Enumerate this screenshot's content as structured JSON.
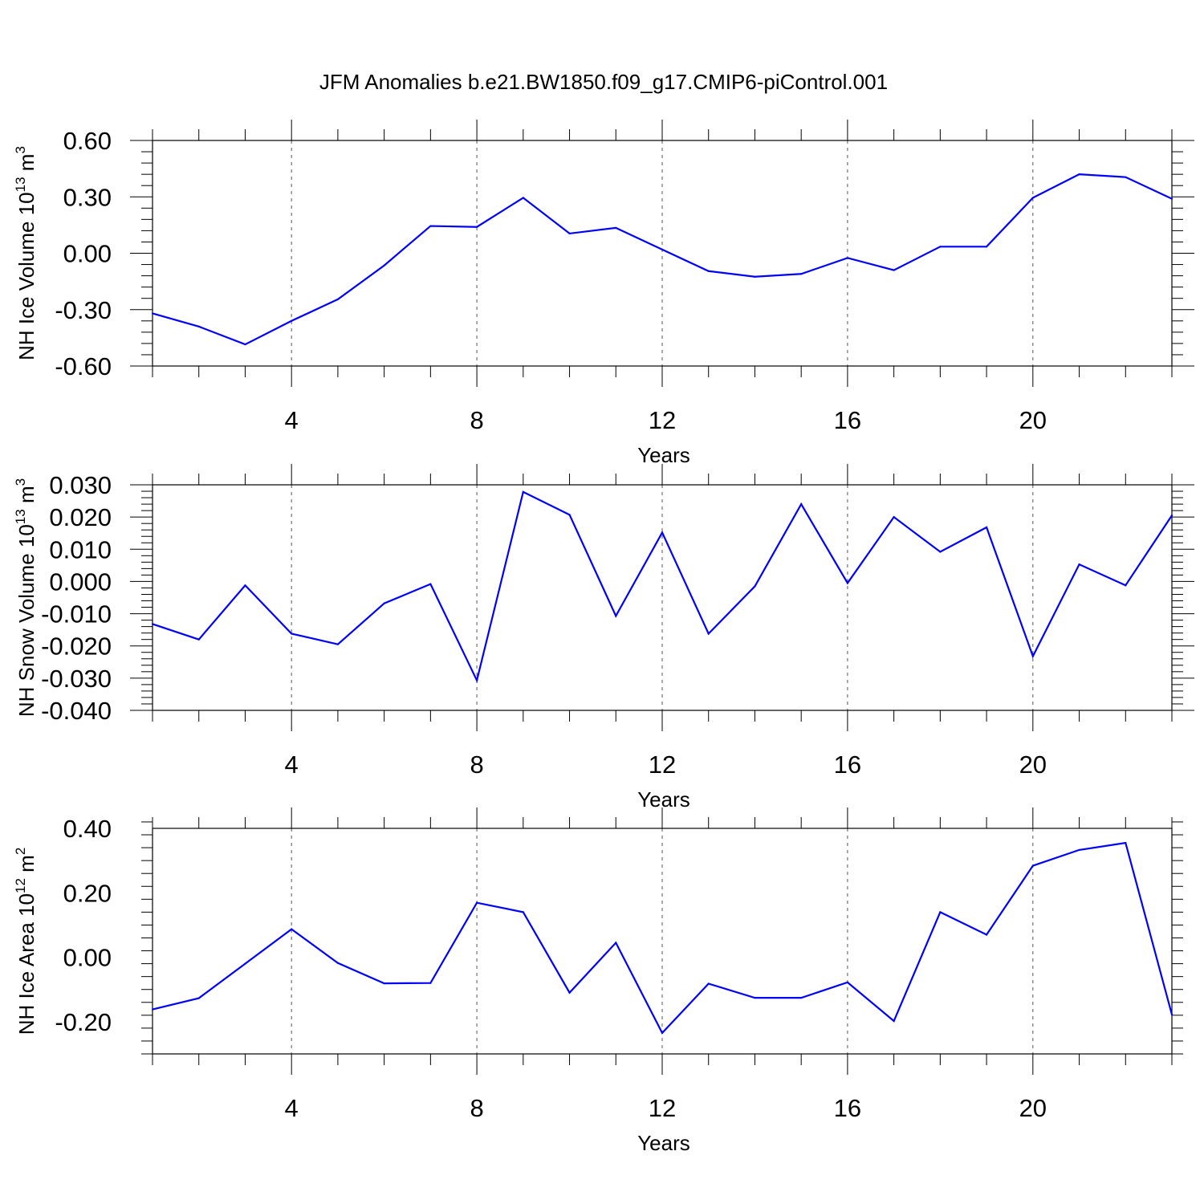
{
  "chart_data": [
    {
      "type": "line",
      "title": "JFM Anomalies b.e21.BW1850.f09_g17.CMIP6-piControl.001",
      "xlabel": "Years",
      "ylabel": "NH Ice Volume 10",
      "ylabel_sup": "13",
      "ylabel_unit": " m",
      "ylabel_unit_sup": "3",
      "xlim": [
        1,
        23
      ],
      "ylim": [
        -0.6,
        0.6
      ],
      "xticks": [
        4,
        8,
        12,
        16,
        20
      ],
      "xtick_labels": [
        "4",
        "8",
        "12",
        "16",
        "20"
      ],
      "yticks": [
        -0.6,
        -0.3,
        0.0,
        0.3,
        0.6
      ],
      "ytick_labels": [
        "-0.60",
        "-0.30",
        "0.00",
        "0.30",
        "0.60"
      ],
      "grid": "x dashed",
      "color": "#0000ff",
      "x": [
        1,
        2,
        3,
        4,
        5,
        6,
        7,
        8,
        9,
        10,
        11,
        12,
        13,
        14,
        15,
        16,
        17,
        18,
        19,
        20,
        21,
        22,
        23
      ],
      "series": [
        {
          "values": [
            -0.32,
            -0.39,
            -0.485,
            -0.36,
            -0.245,
            -0.065,
            0.145,
            0.14,
            0.295,
            0.105,
            0.135,
            0.02,
            -0.095,
            -0.125,
            -0.11,
            -0.025,
            -0.09,
            0.035,
            0.035,
            0.295,
            0.42,
            0.405,
            0.29
          ]
        }
      ]
    },
    {
      "type": "line",
      "xlabel": "Years",
      "ylabel": "NH Snow Volume 10",
      "ylabel_sup": "13",
      "ylabel_unit": " m",
      "ylabel_unit_sup": "3",
      "xlim": [
        1,
        23
      ],
      "ylim": [
        -0.04,
        0.03
      ],
      "xticks": [
        4,
        8,
        12,
        16,
        20
      ],
      "xtick_labels": [
        "4",
        "8",
        "12",
        "16",
        "20"
      ],
      "yticks": [
        -0.04,
        -0.03,
        -0.02,
        -0.01,
        0.0,
        0.01,
        0.02,
        0.03
      ],
      "ytick_labels": [
        "-0.040",
        "-0.030",
        "-0.020",
        "-0.010",
        "0.000",
        "0.010",
        "0.020",
        "0.030"
      ],
      "grid": "x dashed",
      "color": "#0000ff",
      "x": [
        1,
        2,
        3,
        4,
        5,
        6,
        7,
        8,
        9,
        10,
        11,
        12,
        13,
        14,
        15,
        16,
        17,
        18,
        19,
        20,
        21,
        22,
        23
      ],
      "series": [
        {
          "values": [
            -0.0132,
            -0.018,
            -0.0012,
            -0.0162,
            -0.0195,
            -0.0068,
            -0.0008,
            -0.0307,
            0.0278,
            0.0207,
            -0.0107,
            0.0152,
            -0.0162,
            -0.0015,
            0.024,
            -0.0005,
            0.02,
            0.0092,
            0.0168,
            -0.0232,
            0.0053,
            -0.0012,
            0.0205
          ]
        }
      ]
    },
    {
      "type": "line",
      "xlabel": "Years",
      "ylabel": "NH Ice Area 10",
      "ylabel_sup": "12",
      "ylabel_unit": " m",
      "ylabel_unit_sup": "2",
      "xlim": [
        1,
        23
      ],
      "ylim": [
        -0.3,
        0.4
      ],
      "xticks": [
        4,
        8,
        12,
        16,
        20
      ],
      "xtick_labels": [
        "4",
        "8",
        "12",
        "16",
        "20"
      ],
      "yticks": [
        -0.2,
        0.0,
        0.2,
        0.4
      ],
      "ytick_labels": [
        "-0.20",
        "0.00",
        "0.20",
        "0.40"
      ],
      "grid": "x dashed",
      "color": "#0000ff",
      "x": [
        1,
        2,
        3,
        4,
        5,
        6,
        7,
        8,
        9,
        10,
        11,
        12,
        13,
        14,
        15,
        16,
        17,
        18,
        19,
        20,
        21,
        22,
        23
      ],
      "series": [
        {
          "values": [
            -0.162,
            -0.127,
            -0.02,
            0.087,
            -0.018,
            -0.081,
            -0.08,
            0.169,
            0.14,
            -0.11,
            0.045,
            -0.235,
            -0.082,
            -0.126,
            -0.126,
            -0.078,
            -0.198,
            0.14,
            0.07,
            0.284,
            0.333,
            0.355,
            -0.178
          ]
        }
      ]
    }
  ]
}
